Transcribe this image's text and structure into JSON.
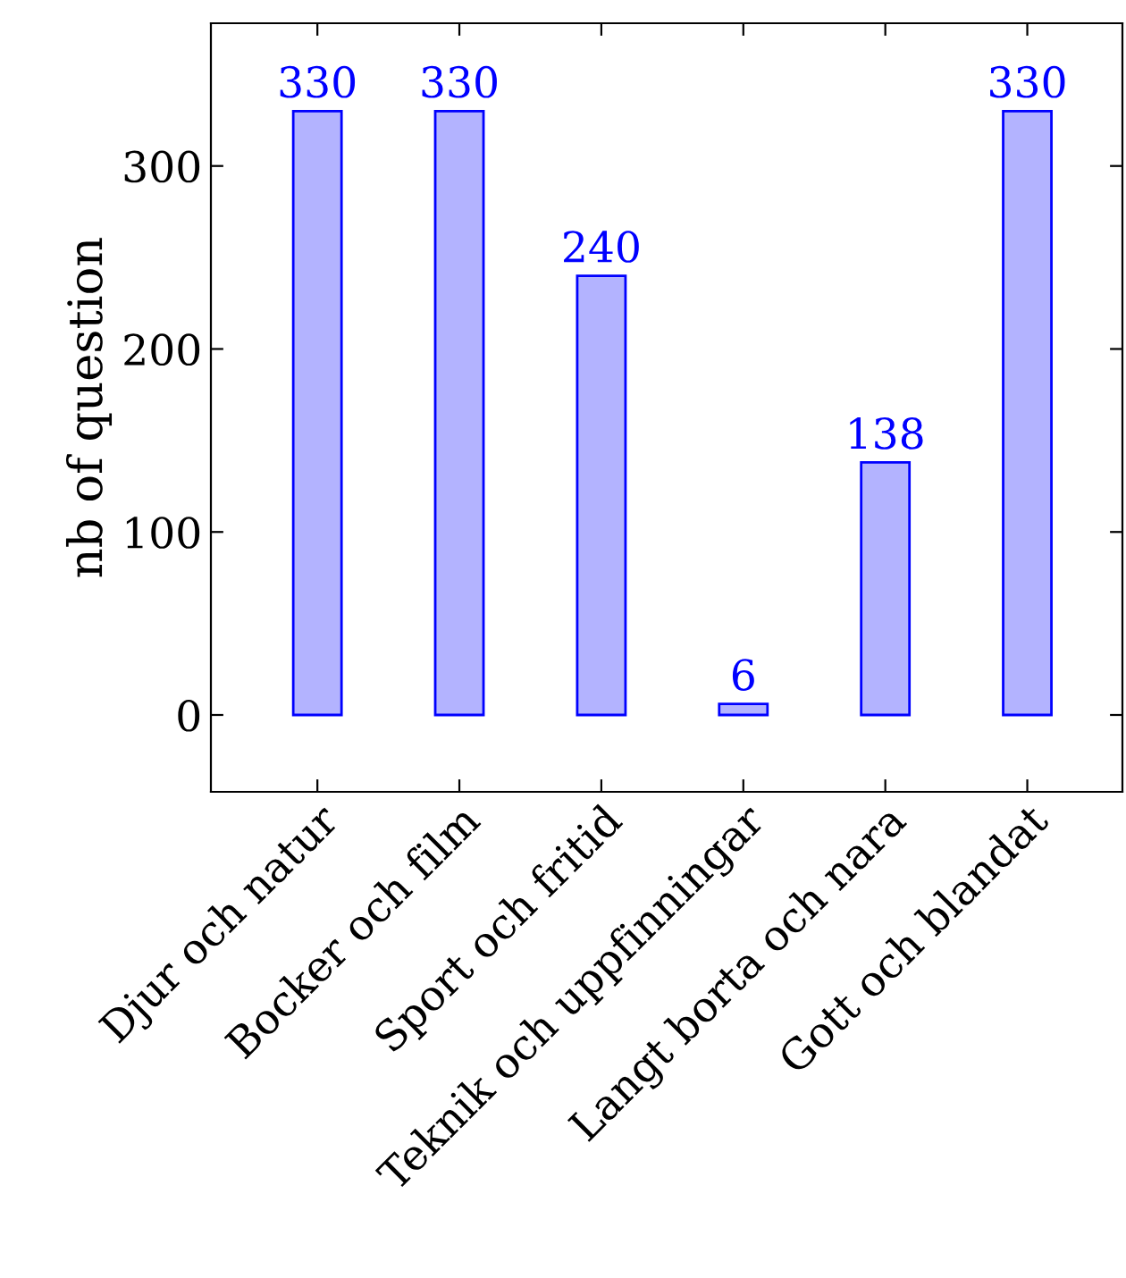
{
  "chart_data": {
    "type": "bar",
    "ylabel": "nb of question",
    "categories": [
      "Djur och natur",
      "Bocker och film",
      "Sport och fritid",
      "Teknik och uppfinningar",
      "Langt borta och nara",
      "Gott och blandat"
    ],
    "values": [
      330,
      330,
      240,
      6,
      138,
      330
    ],
    "color": "#b3b3ff",
    "ylim": [
      -42,
      378
    ],
    "yticks": [
      0,
      100,
      200,
      300
    ],
    "data_labels": true,
    "grid": false
  }
}
